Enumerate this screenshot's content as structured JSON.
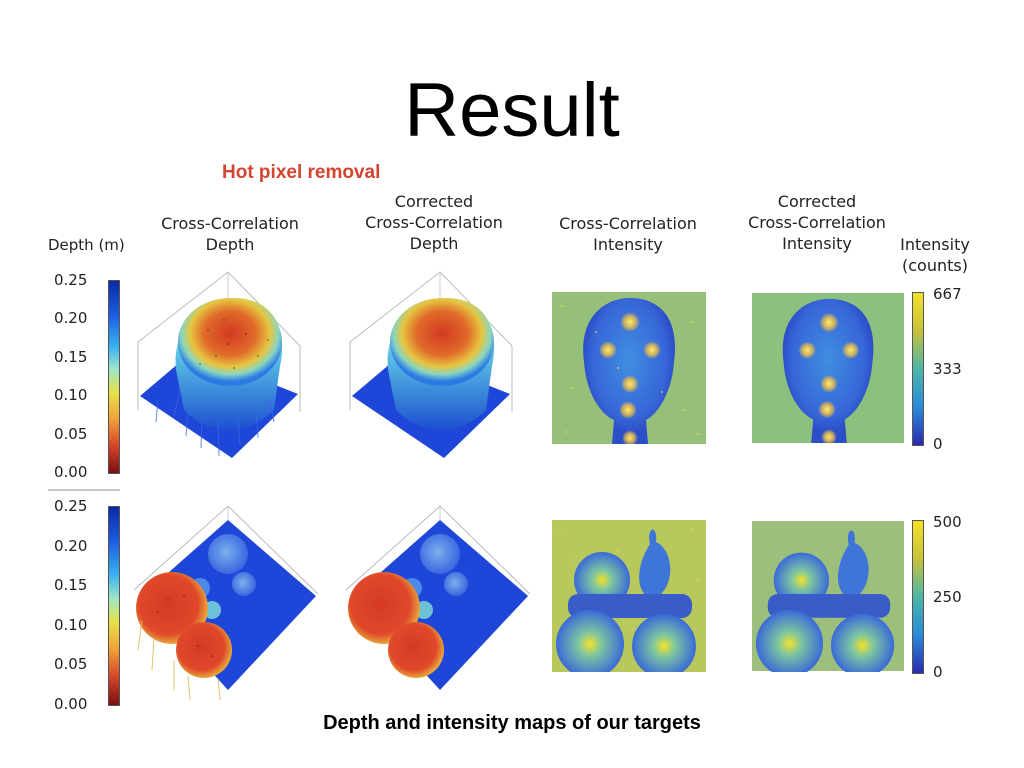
{
  "slide": {
    "title": "Result",
    "subtitle": "Hot pixel removal",
    "caption": "Depth and intensity maps of our targets"
  },
  "columns": [
    {
      "lines": [
        "Cross-Correlation",
        "Depth"
      ]
    },
    {
      "lines": [
        "Corrected",
        "Cross-Correlation",
        "Depth"
      ]
    },
    {
      "lines": [
        "Cross-Correlation",
        "Intensity"
      ]
    },
    {
      "lines": [
        "Corrected",
        "Cross-Correlation",
        "Intensity"
      ]
    }
  ],
  "depth_colorbar": {
    "label": "Depth (m)",
    "ticks": [
      "0.25",
      "0.20",
      "0.15",
      "0.10",
      "0.05",
      "0.00"
    ],
    "values": [
      0.25,
      0.2,
      0.15,
      0.1,
      0.05,
      0.0
    ],
    "colormap": "jet_reversed"
  },
  "intensity_colorbar": {
    "label_lines": [
      "Intensity",
      "(counts)"
    ],
    "row1_ticks": [
      "667",
      "333",
      "0"
    ],
    "row1_values": [
      667,
      333,
      0
    ],
    "row2_ticks": [
      "500",
      "250",
      "0"
    ],
    "row2_values": [
      500,
      250,
      0
    ],
    "colormap": "parula"
  },
  "colors": {
    "subtitle": "#d4442e",
    "depth_high": "#1c2fb0",
    "depth_low": "#7a1010",
    "intensity_high": "#f5e12a",
    "intensity_low": "#2a3bb8"
  }
}
